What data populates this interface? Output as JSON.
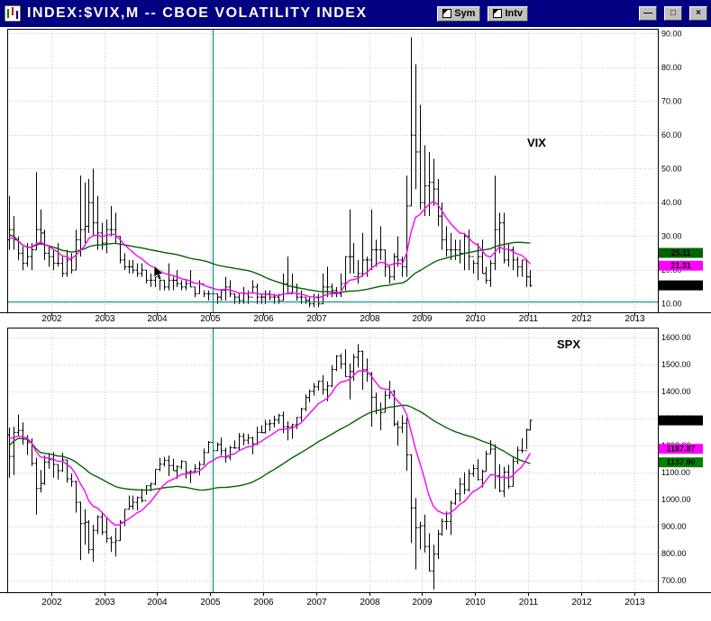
{
  "window": {
    "title": "INDEX:$VIX,M -- CBOE VOLATILITY INDEX",
    "buttons": [
      {
        "label": "Sym"
      },
      {
        "label": "Intv"
      }
    ],
    "window_controls": {
      "minimize": "—",
      "maximize": "□",
      "close": "×"
    }
  },
  "colors": {
    "titlebar": "#000080",
    "bar": "#000000",
    "ma_fast": "#ff00ff",
    "ma_slow": "#006400",
    "crosshair": "#008080",
    "grid": "#c8c8c8"
  },
  "x_axis_years": [
    "2002",
    "2003",
    "2004",
    "2005",
    "2006",
    "2007",
    "2008",
    "2009",
    "2010",
    "2011",
    "2012",
    "2013"
  ],
  "crosshair": {
    "year_frac": 2005.04,
    "value": 10.7
  },
  "chart_data": [
    {
      "type": "ohlc-bar",
      "symbol": "VIX",
      "label": "VIX",
      "timeframe": "M",
      "ylim": [
        7.5,
        91.5
      ],
      "y_ticks": [
        10,
        20,
        30,
        40,
        50,
        60,
        70,
        80,
        90
      ],
      "price_boxes": [
        {
          "label": "25.11",
          "value": 25.11,
          "bg": "#006400"
        },
        {
          "label": "21.31",
          "value": 21.31,
          "bg": "#ff00ff"
        },
        {
          "label": "15.46",
          "value": 15.46,
          "bg": "#000000"
        }
      ],
      "ma_fast": {
        "type": "ema",
        "period": 10
      },
      "ma_slow": {
        "type": "sma",
        "period": 40
      },
      "start_year": 2001,
      "start_month": 2,
      "bars": [
        [
          30,
          21,
          29
        ],
        [
          42,
          26,
          32
        ],
        [
          36,
          26,
          29
        ],
        [
          30,
          23,
          25
        ],
        [
          27,
          20,
          22
        ],
        [
          28,
          21,
          24
        ],
        [
          28,
          20,
          26
        ],
        [
          49,
          26,
          32
        ],
        [
          38,
          28,
          31
        ],
        [
          32,
          23,
          25
        ],
        [
          27,
          21,
          24
        ],
        [
          26,
          20,
          22
        ],
        [
          28,
          21,
          22
        ],
        [
          24,
          18,
          19
        ],
        [
          26,
          18,
          23
        ],
        [
          25,
          19,
          20
        ],
        [
          32,
          20,
          29
        ],
        [
          48,
          24,
          32
        ],
        [
          46,
          28,
          33
        ],
        [
          47,
          31,
          40
        ],
        [
          50,
          30,
          34
        ],
        [
          42,
          26,
          31
        ],
        [
          34,
          26,
          28
        ],
        [
          35,
          25,
          32
        ],
        [
          39,
          30,
          32
        ],
        [
          37,
          28,
          30
        ],
        [
          30,
          22,
          23
        ],
        [
          25,
          20,
          21
        ],
        [
          23,
          19,
          21
        ],
        [
          23,
          19,
          20
        ],
        [
          22,
          18,
          19
        ],
        [
          22,
          18,
          20
        ],
        [
          20,
          16,
          17
        ],
        [
          19,
          15,
          17
        ],
        [
          18,
          15,
          18
        ],
        [
          19,
          14,
          17
        ],
        [
          17,
          14,
          15
        ],
        [
          22,
          14,
          17
        ],
        [
          18,
          14,
          17
        ],
        [
          20,
          15,
          16
        ],
        [
          17,
          14,
          15
        ],
        [
          17,
          14,
          16
        ],
        [
          20,
          15,
          15
        ],
        [
          15,
          12,
          13
        ],
        [
          17,
          13,
          16
        ],
        [
          14,
          12,
          13
        ],
        [
          14,
          11,
          13
        ],
        [
          14,
          11,
          13
        ],
        [
          13,
          10,
          12
        ],
        [
          14,
          11,
          14
        ],
        [
          18,
          11,
          15
        ],
        [
          17,
          12,
          13
        ],
        [
          13,
          10,
          12
        ],
        [
          13,
          10,
          11
        ],
        [
          15,
          10,
          13
        ],
        [
          14,
          10,
          12
        ],
        [
          17,
          13,
          15
        ],
        [
          16,
          10,
          12
        ],
        [
          13,
          10,
          12
        ],
        [
          14,
          10,
          13
        ],
        [
          14,
          11,
          12
        ],
        [
          13,
          10,
          12
        ],
        [
          13,
          10,
          11
        ],
        [
          19,
          11,
          16
        ],
        [
          24,
          13,
          13
        ],
        [
          19,
          13,
          15
        ],
        [
          16,
          11,
          12
        ],
        [
          14,
          10,
          12
        ],
        [
          12,
          10,
          11
        ],
        [
          12,
          9,
          10
        ],
        [
          13,
          9,
          12
        ],
        [
          13,
          9,
          10
        ],
        [
          19,
          10,
          15
        ],
        [
          21,
          12,
          15
        ],
        [
          16,
          12,
          14
        ],
        [
          15,
          12,
          13
        ],
        [
          19,
          12,
          16
        ],
        [
          24,
          14,
          24
        ],
        [
          38,
          19,
          24
        ],
        [
          28,
          19,
          18
        ],
        [
          23,
          16,
          19
        ],
        [
          31,
          18,
          23
        ],
        [
          24,
          18,
          23
        ],
        [
          38,
          20,
          26
        ],
        [
          29,
          21,
          26
        ],
        [
          33,
          23,
          26
        ],
        [
          26,
          18,
          21
        ],
        [
          21,
          16,
          18
        ],
        [
          25,
          17,
          24
        ],
        [
          30,
          21,
          23
        ],
        [
          24,
          18,
          21
        ],
        [
          48,
          18,
          39
        ],
        [
          89,
          39,
          60
        ],
        [
          81,
          44,
          55
        ],
        [
          69,
          38,
          40
        ],
        [
          57,
          36,
          45
        ],
        [
          55,
          36,
          46
        ],
        [
          53,
          39,
          44
        ],
        [
          47,
          33,
          36
        ],
        [
          40,
          26,
          29
        ],
        [
          33,
          24,
          26
        ],
        [
          31,
          23,
          26
        ],
        [
          29,
          23,
          26
        ],
        [
          29,
          22,
          25
        ],
        [
          31,
          20,
          30
        ],
        [
          32,
          20,
          24
        ],
        [
          23,
          19,
          22
        ],
        [
          28,
          17,
          24
        ],
        [
          29,
          19,
          19
        ],
        [
          21,
          16,
          17
        ],
        [
          23,
          15,
          22
        ],
        [
          48,
          20,
          32
        ],
        [
          37,
          25,
          34
        ],
        [
          37,
          22,
          23
        ],
        [
          28,
          21,
          26
        ],
        [
          27,
          20,
          23
        ],
        [
          24,
          18,
          21
        ],
        [
          23,
          18,
          23
        ],
        [
          23,
          15,
          18
        ],
        [
          20,
          15,
          15.46
        ]
      ]
    },
    {
      "type": "ohlc-bar",
      "symbol": "SPX",
      "label": "SPX",
      "timeframe": "M",
      "ylim": [
        657,
        1637
      ],
      "y_ticks": [
        700,
        800,
        900,
        1000,
        1100,
        1200,
        1300,
        1400,
        1500,
        1600
      ],
      "price_boxes": [
        {
          "label": "1293.24",
          "value": 1293.24,
          "bg": "#000000"
        },
        {
          "label": "1187.87",
          "value": 1187.87,
          "bg": "#ff00ff"
        },
        {
          "label": "1137.90",
          "value": 1137.9,
          "bg": "#008000"
        }
      ],
      "ma_fast": {
        "type": "ema",
        "period": 10
      },
      "ma_slow": {
        "type": "sma",
        "period": 40
      },
      "start_year": 2001,
      "start_month": 2,
      "bars": [
        [
          1383,
          1215,
          1240
        ],
        [
          1267,
          1081,
          1160
        ],
        [
          1270,
          1091,
          1249
        ],
        [
          1315,
          1232,
          1256
        ],
        [
          1286,
          1203,
          1224
        ],
        [
          1239,
          1165,
          1211
        ],
        [
          1227,
          1124,
          1134
        ],
        [
          1155,
          944,
          1041
        ],
        [
          1110,
          1026,
          1060
        ],
        [
          1163,
          1054,
          1139
        ],
        [
          1173,
          1114,
          1148
        ],
        [
          1176,
          1081,
          1130
        ],
        [
          1130,
          1074,
          1107
        ],
        [
          1173,
          1103,
          1147
        ],
        [
          1147,
          1063,
          1077
        ],
        [
          1097,
          1048,
          1067
        ],
        [
          1070,
          952,
          990
        ],
        [
          992,
          776,
          911
        ],
        [
          965,
          833,
          916
        ],
        [
          924,
          800,
          815
        ],
        [
          907,
          769,
          886
        ],
        [
          941,
          872,
          936
        ],
        [
          954,
          869,
          880
        ],
        [
          935,
          840,
          856
        ],
        [
          864,
          806,
          841
        ],
        [
          895,
          789,
          848
        ],
        [
          924,
          847,
          917
        ],
        [
          965,
          902,
          964
        ],
        [
          1015,
          963,
          975
        ],
        [
          1015,
          962,
          990
        ],
        [
          1011,
          960,
          1008
        ],
        [
          1040,
          990,
          996
        ],
        [
          1053,
          1018,
          1051
        ],
        [
          1063,
          1031,
          1058
        ],
        [
          1112,
          1053,
          1112
        ],
        [
          1155,
          1105,
          1131
        ],
        [
          1158,
          1122,
          1145
        ],
        [
          1163,
          1087,
          1126
        ],
        [
          1151,
          1107,
          1107
        ],
        [
          1127,
          1076,
          1121
        ],
        [
          1146,
          1113,
          1141
        ],
        [
          1140,
          1078,
          1102
        ],
        [
          1109,
          1061,
          1104
        ],
        [
          1131,
          1099,
          1115
        ],
        [
          1142,
          1090,
          1130
        ],
        [
          1189,
          1128,
          1174
        ],
        [
          1217,
          1173,
          1212
        ],
        [
          1217,
          1163,
          1181
        ],
        [
          1212,
          1180,
          1204
        ],
        [
          1230,
          1163,
          1181
        ],
        [
          1192,
          1136,
          1157
        ],
        [
          1199,
          1146,
          1192
        ],
        [
          1219,
          1188,
          1191
        ],
        [
          1246,
          1183,
          1234
        ],
        [
          1246,
          1201,
          1220
        ],
        [
          1243,
          1205,
          1229
        ],
        [
          1233,
          1168,
          1207
        ],
        [
          1270,
          1201,
          1249
        ],
        [
          1275,
          1246,
          1248
        ],
        [
          1295,
          1245,
          1280
        ],
        [
          1297,
          1254,
          1281
        ],
        [
          1310,
          1268,
          1295
        ],
        [
          1318,
          1280,
          1311
        ],
        [
          1326,
          1246,
          1270
        ],
        [
          1290,
          1219,
          1270
        ],
        [
          1281,
          1225,
          1277
        ],
        [
          1306,
          1261,
          1304
        ],
        [
          1340,
          1290,
          1336
        ],
        [
          1389,
          1327,
          1378
        ],
        [
          1407,
          1360,
          1401
        ],
        [
          1432,
          1385,
          1418
        ],
        [
          1441,
          1404,
          1438
        ],
        [
          1461,
          1389,
          1407
        ],
        [
          1438,
          1364,
          1421
        ],
        [
          1498,
          1416,
          1482
        ],
        [
          1535,
          1476,
          1531
        ],
        [
          1540,
          1484,
          1503
        ],
        [
          1556,
          1455,
          1455
        ],
        [
          1504,
          1371,
          1474
        ],
        [
          1539,
          1439,
          1527
        ],
        [
          1576,
          1489,
          1549
        ],
        [
          1552,
          1406,
          1481
        ],
        [
          1523,
          1436,
          1468
        ],
        [
          1472,
          1270,
          1379
        ],
        [
          1396,
          1316,
          1331
        ],
        [
          1360,
          1257,
          1323
        ],
        [
          1404,
          1324,
          1386
        ],
        [
          1440,
          1373,
          1400
        ],
        [
          1406,
          1272,
          1280
        ],
        [
          1292,
          1200,
          1267
        ],
        [
          1313,
          1247,
          1283
        ],
        [
          1303,
          1106,
          1166
        ],
        [
          1167,
          839,
          969
        ],
        [
          1006,
          741,
          896
        ],
        [
          918,
          815,
          903
        ],
        [
          944,
          804,
          826
        ],
        [
          875,
          735,
          735
        ],
        [
          833,
          667,
          798
        ],
        [
          888,
          780,
          873
        ],
        [
          930,
          866,
          919
        ],
        [
          956,
          888,
          919
        ],
        [
          996,
          869,
          987
        ],
        [
          1039,
          980,
          1021
        ],
        [
          1080,
          992,
          1057
        ],
        [
          1101,
          1020,
          1036
        ],
        [
          1113,
          1029,
          1096
        ],
        [
          1130,
          1085,
          1115
        ],
        [
          1150,
          1071,
          1074
        ],
        [
          1112,
          1045,
          1104
        ],
        [
          1181,
          1105,
          1169
        ],
        [
          1220,
          1170,
          1187
        ],
        [
          1205,
          1040,
          1089
        ],
        [
          1131,
          1028,
          1031
        ],
        [
          1121,
          1010,
          1102
        ],
        [
          1129,
          1040,
          1049
        ],
        [
          1157,
          1049,
          1141
        ],
        [
          1196,
          1131,
          1183
        ],
        [
          1227,
          1173,
          1181
        ],
        [
          1263,
          1187,
          1258
        ],
        [
          1296,
          1257,
          1293.24
        ]
      ]
    }
  ]
}
